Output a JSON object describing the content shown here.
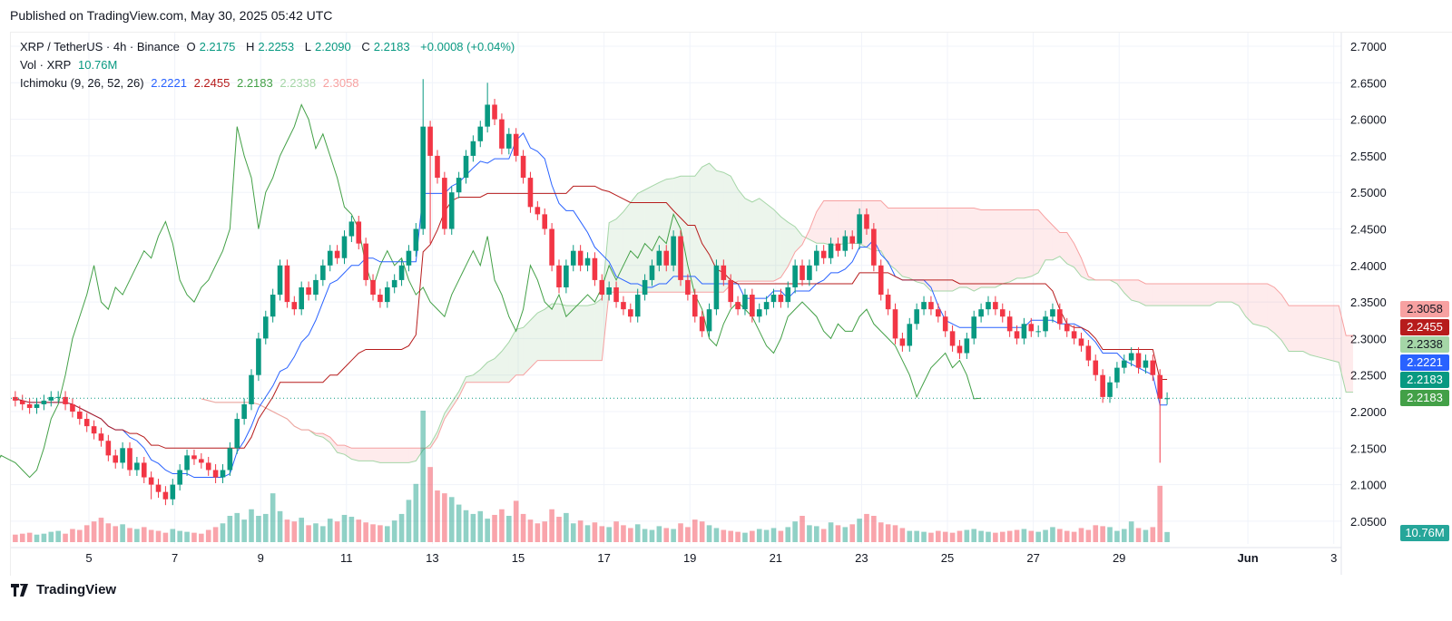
{
  "published": "Published on TradingView.com, May 30, 2025 05:42 UTC",
  "legend": {
    "symbol": "XRP / TetherUS · 4h · Binance",
    "o_label": "O",
    "o": "2.2175",
    "h_label": "H",
    "h": "2.2253",
    "l_label": "L",
    "l": "2.2090",
    "c_label": "C",
    "c": "2.2183",
    "change": "+0.0008 (+0.04%)",
    "vol_label": "Vol · XRP",
    "vol": "10.76M",
    "ichimoku_label": "Ichimoku (9, 26, 52, 26)",
    "ichimoku_values": [
      "2.2221",
      "2.2455",
      "2.2183",
      "2.2338",
      "2.3058"
    ]
  },
  "badges": [
    {
      "text": "2.3058",
      "bg": "#f7a1a1",
      "fg": "#131722",
      "price": 2.3058
    },
    {
      "text": "2.2455",
      "bg": "#b71c1c",
      "fg": "#ffffff",
      "price": 2.2455
    },
    {
      "text": "2.2338",
      "bg": "#a5d6a7",
      "fg": "#131722",
      "price": 2.2338
    },
    {
      "text": "2.2221",
      "bg": "#2962ff",
      "fg": "#ffffff",
      "price": 2.2221
    },
    {
      "text": "2.2183",
      "bg": "#089981",
      "fg": "#ffffff",
      "price": 2.2183
    },
    {
      "text": "2.2183",
      "bg": "#43a047",
      "fg": "#ffffff",
      "price": 2.2183
    }
  ],
  "vol_badge": "10.76M",
  "footer": {
    "logo_text": "TradingView"
  },
  "colors": {
    "up": "#089981",
    "down": "#f23645",
    "tenkan": "#2962ff",
    "kijun": "#b71c1c",
    "chikou": "#43a047",
    "spanA": "#a5d6a7",
    "spanB": "#f7a1a1"
  },
  "chart_data": {
    "type": "candlestick",
    "title": "XRP / TetherUS · 4h · Binance",
    "ylim": [
      2.03,
      2.72
    ],
    "y_ticks": [
      "2.7000",
      "2.6500",
      "2.6000",
      "2.5500",
      "2.5000",
      "2.4500",
      "2.4000",
      "2.3500",
      "2.3000",
      "2.2500",
      "2.2000",
      "2.1500",
      "2.1000",
      "2.0500"
    ],
    "x_ticks": [
      {
        "label": "5",
        "day": 5
      },
      {
        "label": "7",
        "day": 7
      },
      {
        "label": "9",
        "day": 9
      },
      {
        "label": "11",
        "day": 11
      },
      {
        "label": "13",
        "day": 13
      },
      {
        "label": "15",
        "day": 15
      },
      {
        "label": "17",
        "day": 17
      },
      {
        "label": "19",
        "day": 19
      },
      {
        "label": "21",
        "day": 21
      },
      {
        "label": "23",
        "day": 23
      },
      {
        "label": "25",
        "day": 25
      },
      {
        "label": "27",
        "day": 27
      },
      {
        "label": "29",
        "day": 29
      },
      {
        "label": "Jun",
        "day": 32
      },
      {
        "label": "3",
        "day": 34
      }
    ],
    "start_day": 3.2,
    "candles_per_day": 6,
    "first_open": 2.22,
    "close": [
      2.215,
      2.21,
      2.205,
      2.21,
      2.215,
      2.22,
      2.22,
      2.21,
      2.2,
      2.19,
      2.18,
      2.17,
      2.16,
      2.14,
      2.13,
      2.15,
      2.12,
      2.13,
      2.11,
      2.1,
      2.09,
      2.08,
      2.1,
      2.12,
      2.14,
      2.135,
      2.13,
      2.12,
      2.11,
      2.12,
      2.15,
      2.19,
      2.21,
      2.25,
      2.3,
      2.33,
      2.36,
      2.4,
      2.35,
      2.34,
      2.37,
      2.36,
      2.38,
      2.4,
      2.42,
      2.41,
      2.44,
      2.46,
      2.43,
      2.38,
      2.36,
      2.35,
      2.37,
      2.38,
      2.4,
      2.42,
      2.45,
      2.59,
      2.55,
      2.52,
      2.45,
      2.5,
      2.52,
      2.55,
      2.57,
      2.59,
      2.62,
      2.6,
      2.56,
      2.58,
      2.55,
      2.52,
      2.48,
      2.47,
      2.45,
      2.4,
      2.37,
      2.4,
      2.42,
      2.4,
      2.41,
      2.38,
      2.36,
      2.37,
      2.35,
      2.34,
      2.33,
      2.36,
      2.38,
      2.4,
      2.42,
      2.4,
      2.44,
      2.38,
      2.36,
      2.33,
      2.31,
      2.34,
      2.4,
      2.38,
      2.35,
      2.34,
      2.36,
      2.33,
      2.34,
      2.35,
      2.36,
      2.35,
      2.37,
      2.4,
      2.38,
      2.4,
      2.42,
      2.41,
      2.43,
      2.42,
      2.44,
      2.43,
      2.47,
      2.45,
      2.4,
      2.36,
      2.34,
      2.3,
      2.29,
      2.32,
      2.34,
      2.35,
      2.34,
      2.33,
      2.31,
      2.29,
      2.28,
      2.3,
      2.33,
      2.34,
      2.35,
      2.34,
      2.33,
      2.31,
      2.3,
      2.32,
      2.31,
      2.31,
      2.33,
      2.34,
      2.32,
      2.31,
      2.3,
      2.29,
      2.27,
      2.25,
      2.22,
      2.24,
      2.26,
      2.27,
      2.28,
      2.26,
      2.27,
      2.25,
      2.2175,
      2.2183
    ],
    "low_overrides": {
      "160": 2.13,
      "19": 2.08,
      "58": 2.43
    },
    "high_overrides": {
      "57": 2.655,
      "66": 2.65
    },
    "volume_millions": [
      8,
      9,
      10,
      8,
      9,
      11,
      12,
      9,
      14,
      13,
      18,
      22,
      26,
      20,
      17,
      19,
      15,
      14,
      16,
      13,
      12,
      10,
      14,
      12,
      11,
      10,
      9,
      13,
      16,
      20,
      28,
      31,
      24,
      35,
      28,
      30,
      52,
      33,
      24,
      22,
      26,
      18,
      20,
      17,
      25,
      22,
      29,
      27,
      24,
      21,
      19,
      18,
      17,
      23,
      30,
      45,
      62,
      140,
      80,
      55,
      52,
      48,
      40,
      34,
      30,
      33,
      25,
      29,
      35,
      28,
      44,
      30,
      24,
      20,
      22,
      35,
      27,
      31,
      20,
      23,
      18,
      21,
      17,
      16,
      22,
      18,
      15,
      19,
      14,
      13,
      17,
      15,
      14,
      20,
      16,
      24,
      22,
      18,
      15,
      13,
      12,
      11,
      10,
      12,
      14,
      13,
      15,
      12,
      16,
      22,
      28,
      18,
      17,
      14,
      21,
      18,
      16,
      19,
      25,
      30,
      28,
      21,
      19,
      18,
      15,
      12,
      12,
      11,
      10,
      12,
      11,
      10,
      12,
      13,
      14,
      12,
      11,
      10,
      11,
      12,
      13,
      14,
      12,
      11,
      13,
      16,
      14,
      12,
      11,
      15,
      13,
      18,
      17,
      16,
      12,
      14,
      22,
      15,
      13,
      16,
      60,
      10.76
    ]
  }
}
